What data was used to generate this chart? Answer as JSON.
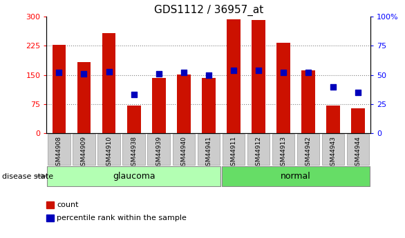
{
  "title": "GDS1112 / 36957_at",
  "samples": [
    "GSM44908",
    "GSM44909",
    "GSM44910",
    "GSM44938",
    "GSM44939",
    "GSM44940",
    "GSM44941",
    "GSM44911",
    "GSM44912",
    "GSM44913",
    "GSM44942",
    "GSM44943",
    "GSM44944"
  ],
  "counts": [
    228,
    183,
    257,
    72,
    142,
    152,
    142,
    294,
    292,
    232,
    162,
    72,
    64
  ],
  "percentiles": [
    52,
    51,
    53,
    33,
    51,
    52,
    50,
    54,
    54,
    52,
    52,
    40,
    35
  ],
  "groups": [
    "glaucoma",
    "glaucoma",
    "glaucoma",
    "glaucoma",
    "glaucoma",
    "glaucoma",
    "glaucoma",
    "normal",
    "normal",
    "normal",
    "normal",
    "normal",
    "normal"
  ],
  "bar_color": "#cc1100",
  "dot_color": "#0000bb",
  "left_ylim": [
    0,
    300
  ],
  "right_ylim": [
    0,
    100
  ],
  "left_yticks": [
    0,
    75,
    150,
    225,
    300
  ],
  "right_yticks": [
    0,
    25,
    50,
    75,
    100
  ],
  "right_yticklabels": [
    "0",
    "25",
    "50",
    "75",
    "100%"
  ],
  "grid_values": [
    75,
    150,
    225
  ],
  "glaucoma_color": "#b3ffb3",
  "normal_color": "#66dd66",
  "tick_bg_color": "#cccccc",
  "legend_count_label": "count",
  "legend_pct_label": "percentile rank within the sample",
  "disease_state_label": "disease state"
}
